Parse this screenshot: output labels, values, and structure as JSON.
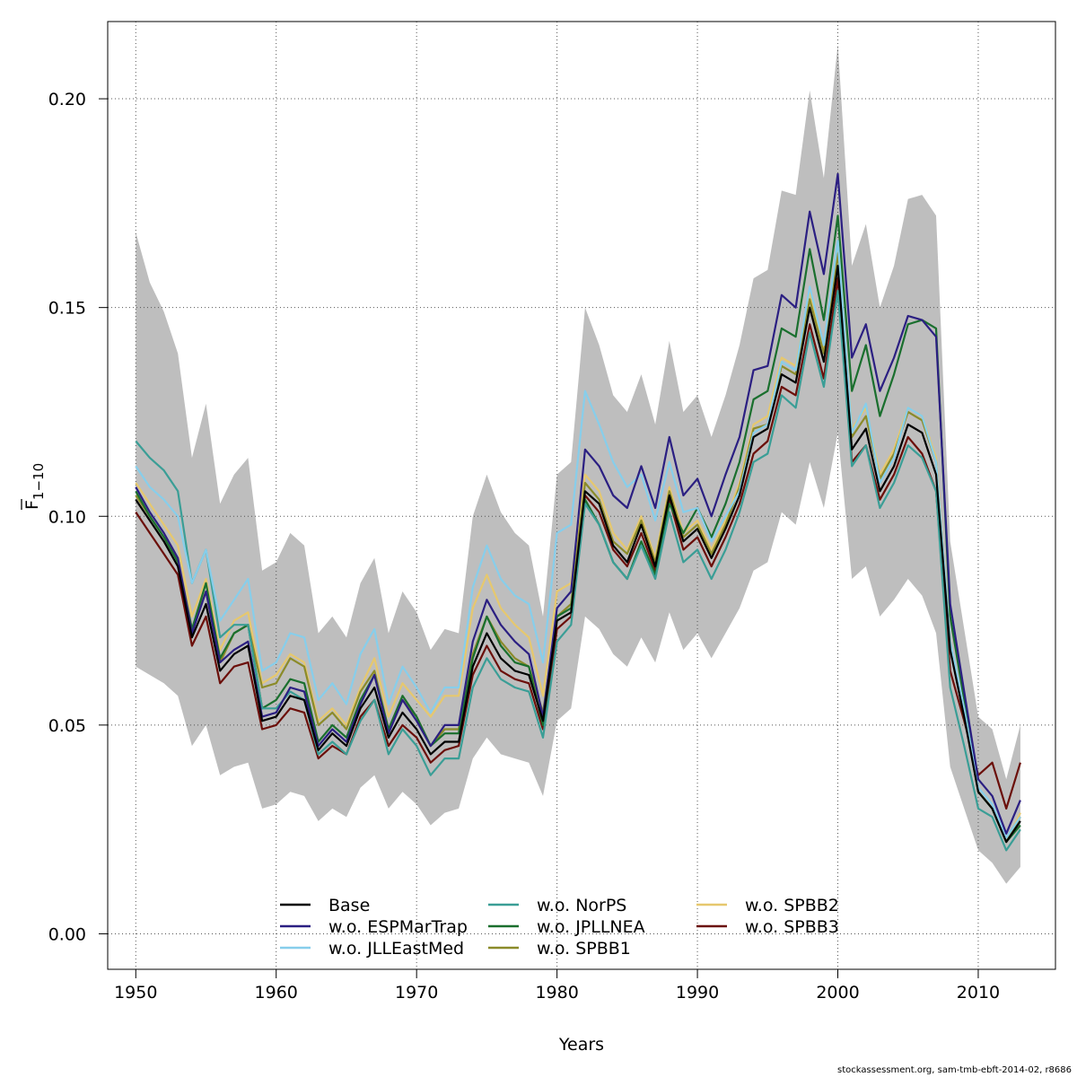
{
  "chart_data": {
    "type": "line",
    "xlabel": "Years",
    "ylabel_main": "F",
    "ylabel_sub": "1−10",
    "xlim": [
      1948,
      2015.5
    ],
    "ylim": [
      -0.0085,
      0.2185
    ],
    "xticks": [
      1950,
      1960,
      1970,
      1980,
      1990,
      2000,
      2010
    ],
    "yticks": [
      0.0,
      0.05,
      0.1,
      0.15,
      0.2
    ],
    "ytick_labels": [
      "0.00",
      "0.05",
      "0.10",
      "0.15",
      "0.20"
    ],
    "grid": true,
    "legend_position": "bottom-center",
    "band": {
      "color": "#bebebe",
      "x": [
        1950,
        1951,
        1952,
        1953,
        1954,
        1955,
        1956,
        1957,
        1958,
        1959,
        1960,
        1961,
        1962,
        1963,
        1964,
        1965,
        1966,
        1967,
        1968,
        1969,
        1970,
        1971,
        1972,
        1973,
        1974,
        1975,
        1976,
        1977,
        1978,
        1979,
        1980,
        1981,
        1982,
        1983,
        1984,
        1985,
        1986,
        1987,
        1988,
        1989,
        1990,
        1991,
        1992,
        1993,
        1994,
        1995,
        1996,
        1997,
        1998,
        1999,
        2000,
        2001,
        2002,
        2003,
        2004,
        2005,
        2006,
        2007,
        2008,
        2009,
        2010,
        2011,
        2012,
        2013
      ],
      "upper": [
        0.168,
        0.156,
        0.149,
        0.139,
        0.114,
        0.127,
        0.103,
        0.11,
        0.114,
        0.087,
        0.089,
        0.096,
        0.093,
        0.072,
        0.076,
        0.071,
        0.084,
        0.09,
        0.072,
        0.082,
        0.077,
        0.068,
        0.073,
        0.072,
        0.1,
        0.11,
        0.101,
        0.096,
        0.093,
        0.076,
        0.11,
        0.113,
        0.15,
        0.141,
        0.129,
        0.125,
        0.134,
        0.122,
        0.142,
        0.125,
        0.129,
        0.119,
        0.129,
        0.141,
        0.157,
        0.159,
        0.178,
        0.177,
        0.202,
        0.181,
        0.213,
        0.16,
        0.17,
        0.15,
        0.16,
        0.176,
        0.177,
        0.172,
        0.094,
        0.073,
        0.052,
        0.049,
        0.037,
        0.05
      ],
      "lower": [
        0.064,
        0.062,
        0.06,
        0.057,
        0.045,
        0.05,
        0.038,
        0.04,
        0.041,
        0.03,
        0.031,
        0.034,
        0.033,
        0.027,
        0.03,
        0.028,
        0.035,
        0.038,
        0.03,
        0.034,
        0.031,
        0.026,
        0.029,
        0.03,
        0.042,
        0.047,
        0.043,
        0.042,
        0.041,
        0.033,
        0.051,
        0.054,
        0.076,
        0.073,
        0.067,
        0.064,
        0.071,
        0.065,
        0.077,
        0.068,
        0.072,
        0.066,
        0.072,
        0.078,
        0.087,
        0.089,
        0.101,
        0.098,
        0.113,
        0.102,
        0.12,
        0.085,
        0.088,
        0.076,
        0.08,
        0.085,
        0.081,
        0.072,
        0.04,
        0.03,
        0.02,
        0.017,
        0.012,
        0.016
      ]
    },
    "x": [
      1950,
      1951,
      1952,
      1953,
      1954,
      1955,
      1956,
      1957,
      1958,
      1959,
      1960,
      1961,
      1962,
      1963,
      1964,
      1965,
      1966,
      1967,
      1968,
      1969,
      1970,
      1971,
      1972,
      1973,
      1974,
      1975,
      1976,
      1977,
      1978,
      1979,
      1980,
      1981,
      1982,
      1983,
      1984,
      1985,
      1986,
      1987,
      1988,
      1989,
      1990,
      1991,
      1992,
      1993,
      1994,
      1995,
      1996,
      1997,
      1998,
      1999,
      2000,
      2001,
      2002,
      2003,
      2004,
      2005,
      2006,
      2007,
      2008,
      2009,
      2010,
      2011,
      2012,
      2013
    ],
    "series": [
      {
        "name": "Base",
        "color": "#000000",
        "values": [
          0.104,
          0.099,
          0.094,
          0.088,
          0.071,
          0.079,
          0.063,
          0.067,
          0.069,
          0.051,
          0.052,
          0.057,
          0.056,
          0.044,
          0.048,
          0.045,
          0.054,
          0.059,
          0.047,
          0.053,
          0.049,
          0.043,
          0.046,
          0.046,
          0.064,
          0.072,
          0.066,
          0.063,
          0.062,
          0.051,
          0.075,
          0.077,
          0.106,
          0.103,
          0.093,
          0.089,
          0.098,
          0.088,
          0.105,
          0.094,
          0.097,
          0.09,
          0.097,
          0.105,
          0.119,
          0.121,
          0.134,
          0.132,
          0.15,
          0.137,
          0.16,
          0.116,
          0.121,
          0.106,
          0.112,
          0.122,
          0.12,
          0.11,
          0.068,
          0.052,
          0.034,
          0.03,
          0.022,
          0.027
        ]
      },
      {
        "name": "w.o. ESPMarTrap",
        "color": "#2b1f82",
        "values": [
          0.107,
          0.101,
          0.096,
          0.09,
          0.072,
          0.082,
          0.065,
          0.068,
          0.07,
          0.052,
          0.053,
          0.059,
          0.058,
          0.045,
          0.049,
          0.046,
          0.055,
          0.062,
          0.048,
          0.056,
          0.051,
          0.045,
          0.05,
          0.05,
          0.07,
          0.08,
          0.074,
          0.07,
          0.067,
          0.052,
          0.078,
          0.082,
          0.116,
          0.112,
          0.105,
          0.102,
          0.112,
          0.102,
          0.119,
          0.105,
          0.109,
          0.1,
          0.11,
          0.119,
          0.135,
          0.136,
          0.153,
          0.15,
          0.173,
          0.158,
          0.182,
          0.138,
          0.146,
          0.13,
          0.138,
          0.148,
          0.147,
          0.143,
          0.079,
          0.058,
          0.037,
          0.033,
          0.024,
          0.032
        ]
      },
      {
        "name": "w.o. JLLEastMed",
        "color": "#87ceeb",
        "values": [
          0.112,
          0.107,
          0.104,
          0.1,
          0.084,
          0.092,
          0.075,
          0.08,
          0.085,
          0.063,
          0.065,
          0.072,
          0.071,
          0.056,
          0.06,
          0.055,
          0.067,
          0.073,
          0.055,
          0.064,
          0.059,
          0.053,
          0.059,
          0.059,
          0.083,
          0.093,
          0.085,
          0.081,
          0.079,
          0.065,
          0.096,
          0.098,
          0.13,
          0.122,
          0.113,
          0.107,
          0.11,
          0.099,
          0.113,
          0.101,
          0.102,
          0.094,
          0.1,
          0.106,
          0.12,
          0.122,
          0.137,
          0.135,
          0.155,
          0.141,
          0.166,
          0.12,
          0.127,
          0.108,
          0.114,
          0.126,
          0.124,
          0.113,
          0.07,
          0.054,
          0.035,
          0.031,
          0.023,
          0.028
        ]
      },
      {
        "name": "w.o. NorPS",
        "color": "#3a9e96",
        "values": [
          0.118,
          0.114,
          0.111,
          0.106,
          0.084,
          0.092,
          0.071,
          0.074,
          0.074,
          0.054,
          0.054,
          0.058,
          0.056,
          0.043,
          0.046,
          0.043,
          0.051,
          0.056,
          0.043,
          0.049,
          0.045,
          0.038,
          0.042,
          0.042,
          0.059,
          0.066,
          0.061,
          0.059,
          0.058,
          0.047,
          0.07,
          0.074,
          0.103,
          0.098,
          0.089,
          0.085,
          0.093,
          0.085,
          0.101,
          0.089,
          0.092,
          0.085,
          0.092,
          0.101,
          0.113,
          0.115,
          0.129,
          0.126,
          0.144,
          0.131,
          0.154,
          0.112,
          0.117,
          0.102,
          0.108,
          0.117,
          0.114,
          0.106,
          0.059,
          0.045,
          0.03,
          0.028,
          0.02,
          0.025
        ]
      },
      {
        "name": "w.o. JPLLNEA",
        "color": "#1a6f2e",
        "values": [
          0.106,
          0.1,
          0.095,
          0.089,
          0.073,
          0.084,
          0.066,
          0.072,
          0.074,
          0.054,
          0.056,
          0.061,
          0.06,
          0.046,
          0.05,
          0.047,
          0.056,
          0.062,
          0.049,
          0.057,
          0.052,
          0.045,
          0.048,
          0.048,
          0.066,
          0.076,
          0.069,
          0.065,
          0.064,
          0.05,
          0.076,
          0.078,
          0.104,
          0.098,
          0.089,
          0.085,
          0.094,
          0.086,
          0.103,
          0.096,
          0.102,
          0.095,
          0.103,
          0.113,
          0.128,
          0.13,
          0.145,
          0.143,
          0.164,
          0.147,
          0.172,
          0.13,
          0.141,
          0.124,
          0.134,
          0.146,
          0.147,
          0.145,
          0.076,
          0.056,
          0.034,
          0.03,
          0.022,
          0.026
        ]
      },
      {
        "name": "w.o. SPBB1",
        "color": "#8b8b2a",
        "values": [
          0.105,
          0.1,
          0.095,
          0.09,
          0.073,
          0.082,
          0.065,
          0.072,
          0.074,
          0.059,
          0.06,
          0.066,
          0.064,
          0.05,
          0.053,
          0.049,
          0.058,
          0.063,
          0.049,
          0.056,
          0.052,
          0.045,
          0.049,
          0.049,
          0.067,
          0.076,
          0.07,
          0.066,
          0.064,
          0.053,
          0.076,
          0.079,
          0.108,
          0.104,
          0.094,
          0.091,
          0.099,
          0.089,
          0.106,
          0.095,
          0.098,
          0.091,
          0.098,
          0.107,
          0.121,
          0.122,
          0.136,
          0.134,
          0.152,
          0.139,
          0.163,
          0.119,
          0.124,
          0.109,
          0.115,
          0.125,
          0.123,
          0.113,
          0.069,
          0.052,
          0.034,
          0.03,
          0.022,
          0.028
        ]
      },
      {
        "name": "w.o. SPBB2",
        "color": "#e6c86e",
        "values": [
          0.108,
          0.103,
          0.098,
          0.093,
          0.076,
          0.085,
          0.068,
          0.075,
          0.077,
          0.06,
          0.062,
          0.067,
          0.065,
          0.051,
          0.054,
          0.05,
          0.059,
          0.066,
          0.052,
          0.06,
          0.056,
          0.052,
          0.057,
          0.057,
          0.078,
          0.086,
          0.078,
          0.074,
          0.071,
          0.057,
          0.082,
          0.084,
          0.11,
          0.106,
          0.096,
          0.092,
          0.1,
          0.09,
          0.107,
          0.096,
          0.099,
          0.092,
          0.099,
          0.108,
          0.122,
          0.124,
          0.138,
          0.136,
          0.154,
          0.14,
          0.165,
          0.121,
          0.126,
          0.11,
          0.116,
          0.126,
          0.124,
          0.114,
          0.07,
          0.053,
          0.034,
          0.03,
          0.022,
          0.029
        ]
      },
      {
        "name": "w.o. SPBB3",
        "color": "#6b0f0a",
        "values": [
          0.101,
          0.096,
          0.091,
          0.086,
          0.069,
          0.076,
          0.06,
          0.064,
          0.065,
          0.049,
          0.05,
          0.054,
          0.053,
          0.042,
          0.045,
          0.043,
          0.052,
          0.056,
          0.045,
          0.05,
          0.047,
          0.041,
          0.044,
          0.045,
          0.062,
          0.069,
          0.063,
          0.061,
          0.06,
          0.049,
          0.073,
          0.076,
          0.105,
          0.101,
          0.092,
          0.088,
          0.096,
          0.087,
          0.104,
          0.092,
          0.095,
          0.088,
          0.095,
          0.103,
          0.115,
          0.118,
          0.131,
          0.129,
          0.146,
          0.133,
          0.157,
          0.113,
          0.117,
          0.104,
          0.11,
          0.119,
          0.115,
          0.106,
          0.063,
          0.051,
          0.038,
          0.041,
          0.03,
          0.041
        ]
      }
    ]
  },
  "footer": "stockassessment.org, sam-tmb-ebft-2014-02, r8686"
}
